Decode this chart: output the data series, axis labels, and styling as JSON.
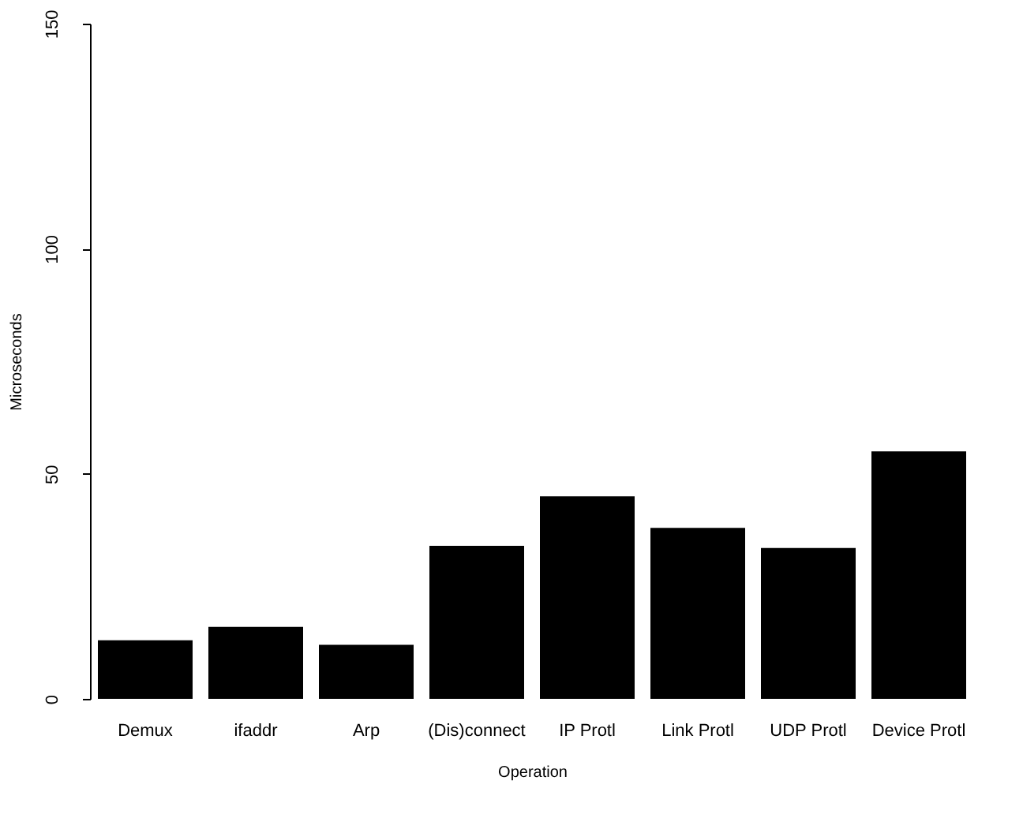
{
  "chart_data": {
    "type": "bar",
    "xlabel": "Operation",
    "ylabel": "Microseconds",
    "categories": [
      "Demux",
      "ifaddr",
      "Arp",
      "(Dis)connect",
      "IP Protl",
      "Link Protl",
      "UDP Protl",
      "Device Protl"
    ],
    "values": [
      13,
      16,
      12,
      34,
      45,
      38,
      33.5,
      55
    ],
    "color": "#000000",
    "ylim": [
      0,
      150
    ],
    "yticks": [
      0,
      50,
      100,
      150
    ],
    "grid": false
  }
}
